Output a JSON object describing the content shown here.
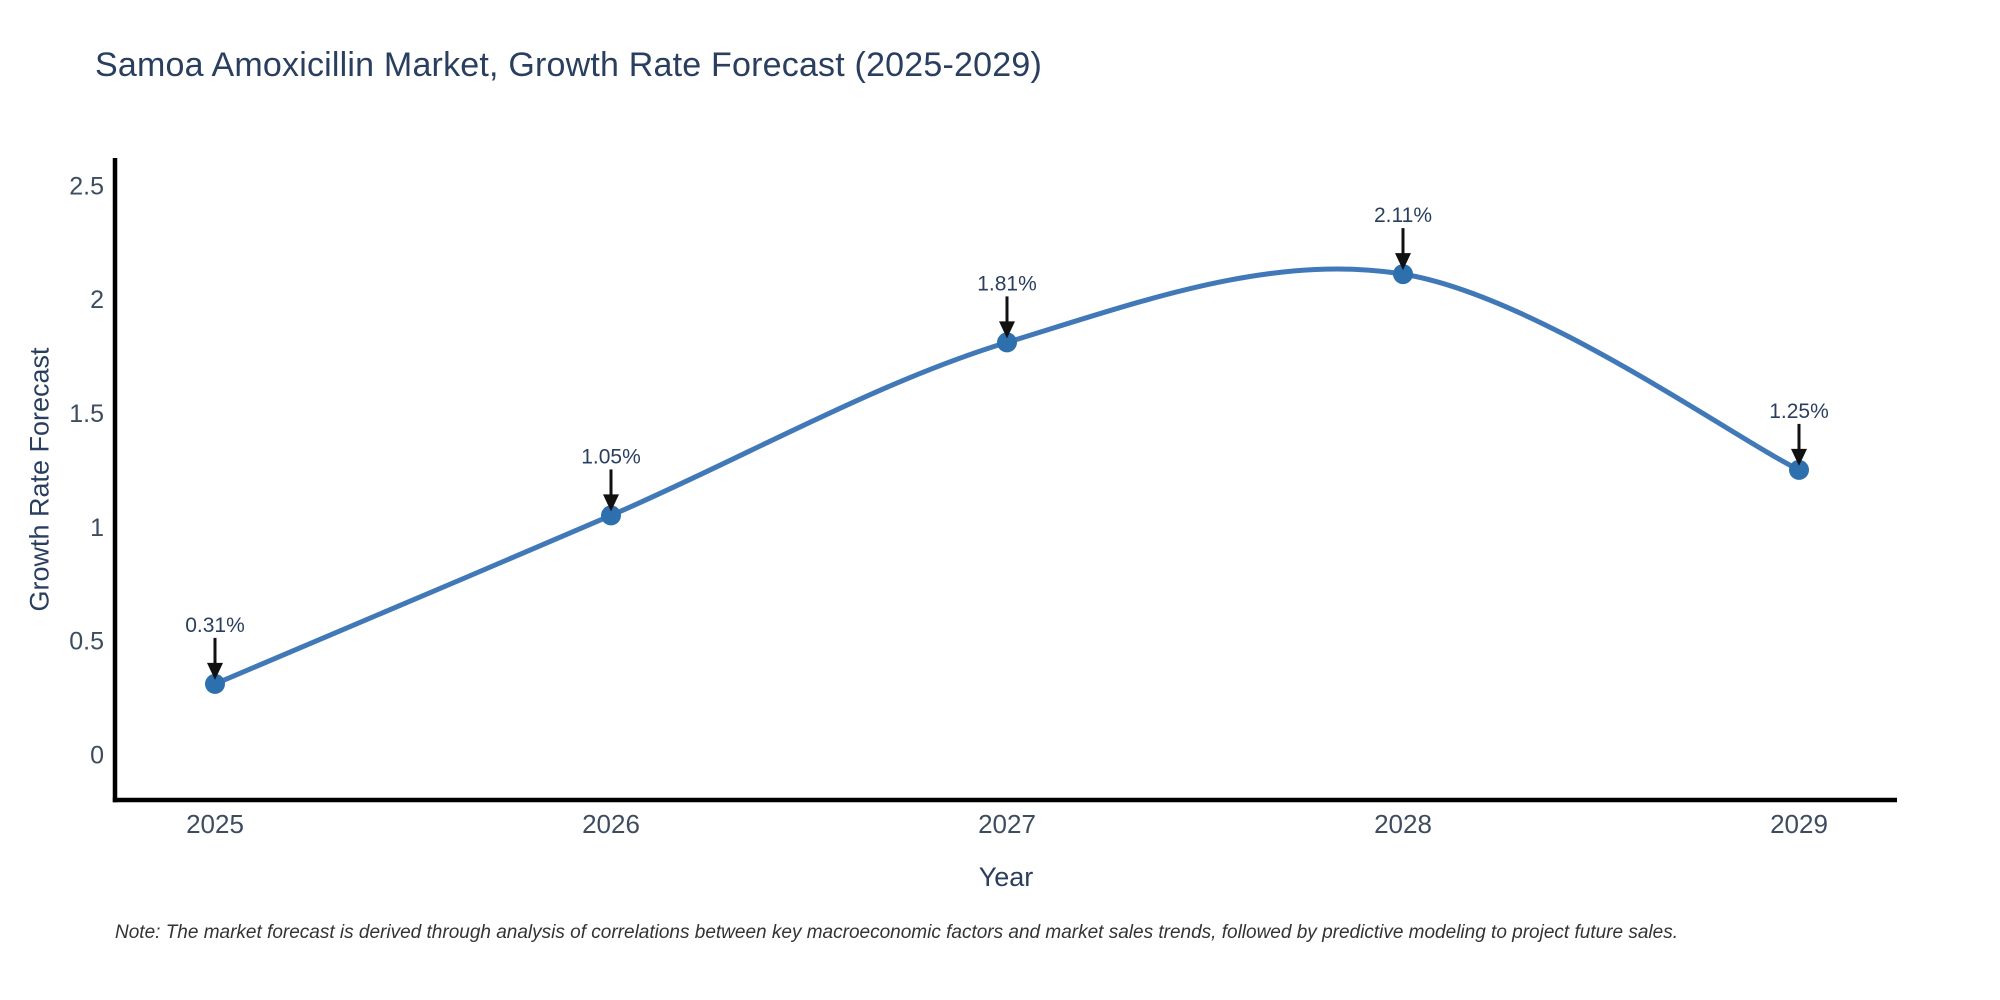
{
  "chart_data": {
    "type": "line",
    "title": "Samoa Amoxicillin Market, Growth Rate Forecast (2025-2029)",
    "xlabel": "Year",
    "ylabel": "Growth Rate Forecast",
    "note": "Note: The market forecast is derived through analysis of correlations between key macroeconomic factors and market sales trends, followed by predictive modeling to project future sales.",
    "x": [
      2025,
      2026,
      2027,
      2028,
      2029
    ],
    "series": [
      {
        "name": "Growth Rate Forecast",
        "values": [
          0.31,
          1.05,
          1.81,
          2.11,
          1.25
        ]
      }
    ],
    "point_labels": [
      "0.31%",
      "1.05%",
      "1.81%",
      "2.11%",
      "1.25%"
    ],
    "yticks": [
      0,
      0.5,
      1,
      1.5,
      2,
      2.5
    ],
    "ylim": [
      -0.2,
      2.62
    ],
    "line_shape": "spline",
    "grid": false,
    "legend_position": "none",
    "annotation_style": "black-down-arrow-to-point",
    "colors": {
      "line": "#4179b8",
      "marker": "#2e6fae",
      "axis": "#000000",
      "title_text": "#2a3f5f",
      "tick_text": "#3e4c60",
      "annotation_text": "#2a3f5f",
      "arrow": "#111111",
      "note_text": "#333333",
      "background": "#ffffff"
    }
  }
}
